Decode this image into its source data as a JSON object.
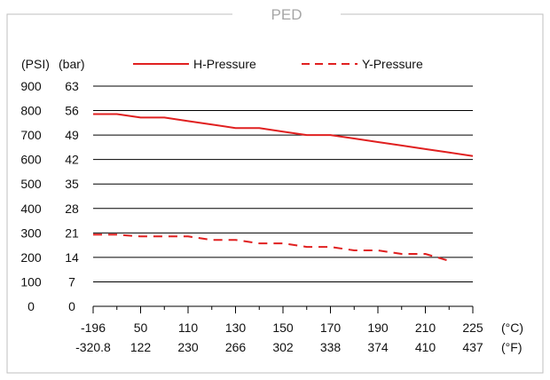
{
  "chart_data": {
    "type": "line",
    "title": "PED",
    "y_unit_left": "(PSI)",
    "y_unit_right": "(bar)",
    "x_unit_top": "(°C)",
    "x_unit_bottom": "(°F)",
    "y_ticks_psi": [
      "0",
      "100",
      "200",
      "300",
      "400",
      "500",
      "600",
      "700",
      "800",
      "900"
    ],
    "y_ticks_bar": [
      "0",
      "7",
      "14",
      "21",
      "28",
      "35",
      "42",
      "49",
      "56",
      "63"
    ],
    "x_ticks_c": [
      "-196",
      "50",
      "110",
      "130",
      "150",
      "170",
      "190",
      "210",
      "225"
    ],
    "x_ticks_f": [
      "-320.8",
      "122",
      "230",
      "266",
      "302",
      "338",
      "374",
      "410",
      "437"
    ],
    "ylim_bar": [
      0,
      63
    ],
    "grid": true,
    "legend_position": "top",
    "series": [
      {
        "name": "H-Pressure",
        "style": "solid",
        "color": "#e02020",
        "x_index": [
          0,
          0.5,
          1,
          1.5,
          2,
          2.5,
          3,
          3.5,
          4,
          4.5,
          5,
          5.5,
          6,
          6.5,
          7,
          7.5,
          8
        ],
        "values": [
          55,
          55,
          54,
          54,
          53,
          52,
          51,
          51,
          50,
          49,
          49,
          48,
          47,
          46,
          45,
          44,
          43
        ]
      },
      {
        "name": "Y-Pressure",
        "style": "dashed",
        "color": "#e02020",
        "x_index": [
          0,
          0.5,
          1,
          1.5,
          2,
          2.5,
          3,
          3.5,
          4,
          4.5,
          5,
          5.5,
          6,
          6.5,
          7,
          7.5
        ],
        "values": [
          20.5,
          20.5,
          20,
          20,
          20,
          19,
          19,
          18,
          18,
          17,
          17,
          16,
          16,
          15,
          15,
          13
        ]
      }
    ]
  }
}
